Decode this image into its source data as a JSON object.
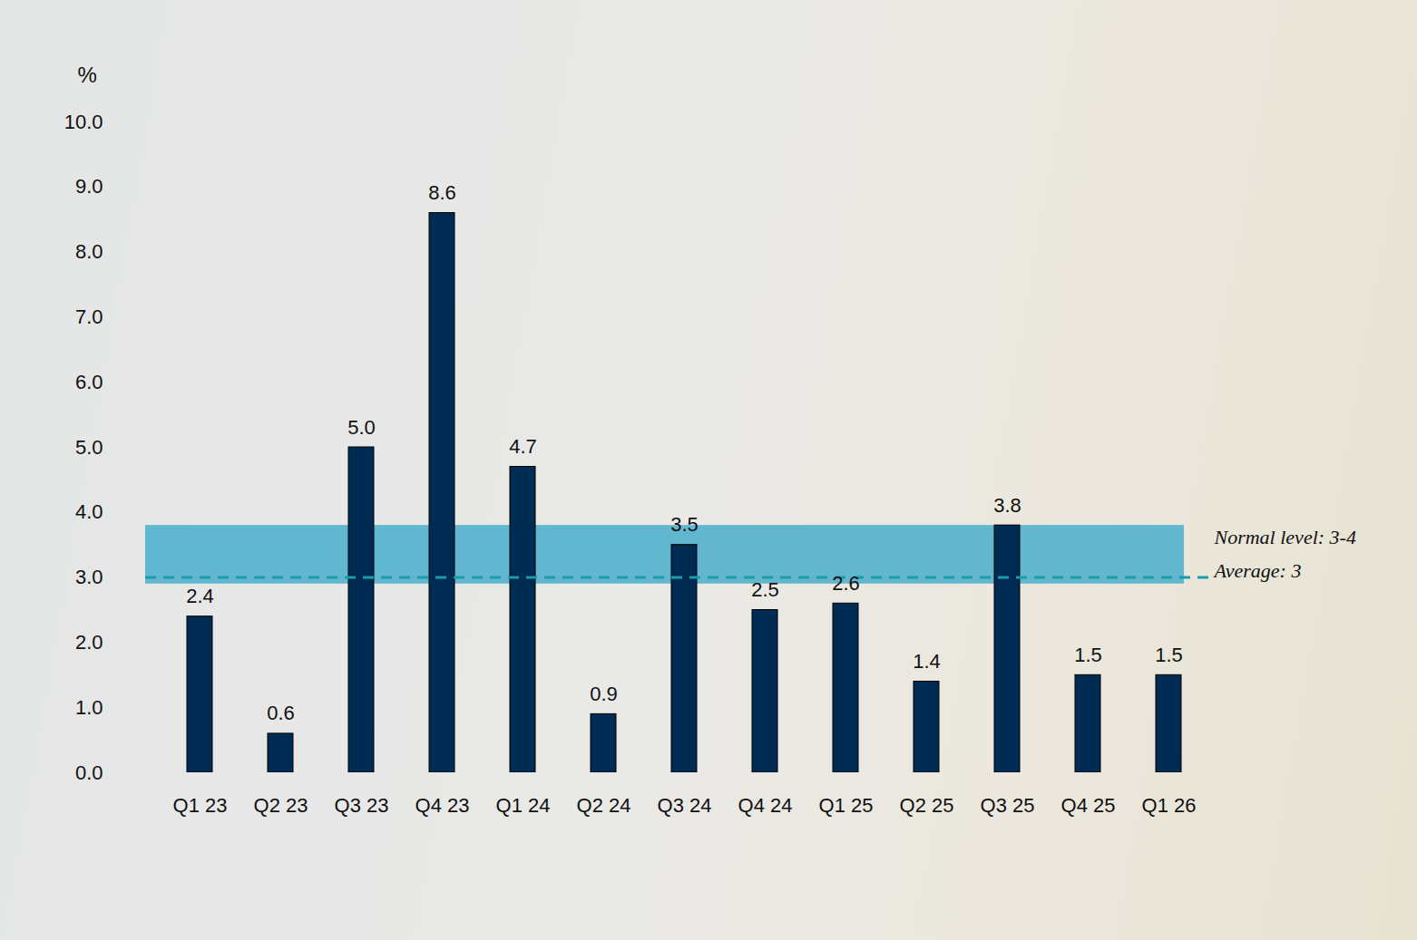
{
  "chart_data": {
    "type": "bar",
    "y_label": "%",
    "categories": [
      "Q1 23",
      "Q2 23",
      "Q3 23",
      "Q4 23",
      "Q1 24",
      "Q2 24",
      "Q3 24",
      "Q4 24",
      "Q1 25",
      "Q2 25",
      "Q3 25",
      "Q4 25",
      "Q1 26"
    ],
    "values": [
      2.4,
      0.6,
      5.0,
      8.6,
      4.7,
      0.9,
      3.5,
      2.5,
      2.6,
      1.4,
      3.8,
      1.5,
      1.5
    ],
    "value_labels": [
      "2.4",
      "0.6",
      "5.0",
      "8.6",
      "4.7",
      "0.9",
      "3.5",
      "2.5",
      "2.6",
      "1.4",
      "3.8",
      "1.5",
      "1.5"
    ],
    "color": "#002b52",
    "ylim": [
      0,
      10
    ],
    "yticks": [
      {
        "value": 0,
        "label": "0.0"
      },
      {
        "value": 1,
        "label": "1.0"
      },
      {
        "value": 2,
        "label": "2.0"
      },
      {
        "value": 3,
        "label": "3.0"
      },
      {
        "value": 4,
        "label": "4.0"
      },
      {
        "value": 5,
        "label": "5.0"
      },
      {
        "value": 6,
        "label": "6.0"
      },
      {
        "value": 7,
        "label": "7.0"
      },
      {
        "value": 8,
        "label": "8.0"
      },
      {
        "value": 9,
        "label": "9.0"
      },
      {
        "value": 10,
        "label": "10.0"
      }
    ],
    "grid": false,
    "data_labels": true,
    "bands": [
      {
        "range": [
          2.9,
          3.8
        ],
        "label": "Normal level: 3-4",
        "color": "#4aaecb"
      }
    ],
    "reference_lines": [
      {
        "value": 3,
        "label": "Average: 3",
        "line_style": "dashed",
        "color": "#1a9caa"
      }
    ]
  }
}
